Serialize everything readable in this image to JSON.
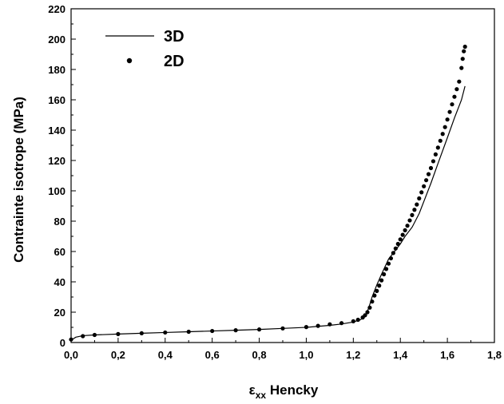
{
  "chart_data": {
    "type": "line",
    "title": "",
    "xlabel_main": "ε",
    "xlabel_sub": "xx",
    "xlabel_rest": " Hencky",
    "ylabel": "Contrainte isotrope (MPa)",
    "xlim": [
      0,
      1.8
    ],
    "ylim": [
      0,
      220
    ],
    "x_ticks": [
      0,
      0.2,
      0.4,
      0.6,
      0.8,
      1.0,
      1.2,
      1.4,
      1.6,
      1.8
    ],
    "x_tick_labels": [
      "0,0",
      "0,2",
      "0,4",
      "0,6",
      "0,8",
      "1,0",
      "1,2",
      "1,4",
      "1,6",
      "1,8"
    ],
    "y_ticks": [
      0,
      20,
      40,
      60,
      80,
      100,
      120,
      140,
      160,
      180,
      200,
      220
    ],
    "y_tick_labels": [
      "0",
      "20",
      "40",
      "60",
      "80",
      "100",
      "120",
      "140",
      "160",
      "180",
      "200",
      "220"
    ],
    "grid": false,
    "legend_position": "top-left",
    "series": [
      {
        "name": "3D",
        "style": "line",
        "color": "#000000",
        "x": [
          0.0,
          0.02,
          0.05,
          0.1,
          0.2,
          0.3,
          0.4,
          0.5,
          0.6,
          0.7,
          0.8,
          0.9,
          1.0,
          1.1,
          1.15,
          1.2,
          1.23,
          1.25,
          1.26,
          1.27,
          1.28,
          1.3,
          1.32,
          1.35,
          1.38,
          1.4,
          1.42,
          1.45,
          1.48,
          1.5,
          1.53,
          1.56,
          1.6,
          1.63,
          1.66,
          1.675
        ],
        "y": [
          1.5,
          3.5,
          4.5,
          5.0,
          5.6,
          6.1,
          6.6,
          7.1,
          7.6,
          8.1,
          8.6,
          9.3,
          10.0,
          11.3,
          12.2,
          13.5,
          15.0,
          17.0,
          20.5,
          25.0,
          30.0,
          38.0,
          45.0,
          55.0,
          61.0,
          65.0,
          70.0,
          76.0,
          85.0,
          93.0,
          105.0,
          118.0,
          135.0,
          148.0,
          160.0,
          169.0
        ]
      },
      {
        "name": "2D",
        "style": "markers",
        "color": "#000000",
        "x": [
          0.0,
          0.05,
          0.1,
          0.2,
          0.3,
          0.4,
          0.5,
          0.6,
          0.7,
          0.8,
          0.9,
          1.0,
          1.05,
          1.1,
          1.15,
          1.2,
          1.22,
          1.24,
          1.25,
          1.26,
          1.27,
          1.28,
          1.29,
          1.3,
          1.31,
          1.32,
          1.33,
          1.34,
          1.35,
          1.36,
          1.37,
          1.38,
          1.39,
          1.4,
          1.41,
          1.42,
          1.43,
          1.44,
          1.45,
          1.46,
          1.47,
          1.48,
          1.49,
          1.5,
          1.51,
          1.52,
          1.53,
          1.54,
          1.55,
          1.56,
          1.57,
          1.58,
          1.59,
          1.6,
          1.61,
          1.62,
          1.63,
          1.64,
          1.65,
          1.66,
          1.665,
          1.67,
          1.675
        ],
        "y": [
          2.0,
          4.2,
          5.0,
          5.6,
          6.1,
          6.6,
          7.1,
          7.6,
          8.1,
          8.6,
          9.3,
          10.2,
          11.0,
          12.0,
          12.8,
          14.0,
          15.0,
          16.5,
          18.0,
          20.0,
          23.0,
          27.0,
          31.0,
          34.0,
          37.5,
          41.0,
          45.0,
          48.5,
          52.0,
          55.5,
          59.0,
          62.0,
          65.0,
          68.0,
          71.0,
          74.0,
          77.0,
          80.5,
          84.0,
          87.5,
          91.0,
          95.0,
          99.0,
          103.0,
          107.0,
          111.0,
          115.0,
          119.5,
          124.0,
          128.5,
          133.0,
          137.5,
          142.0,
          147.0,
          152.0,
          157.0,
          162.0,
          167.0,
          172.0,
          181.0,
          187.0,
          192.0,
          195.0
        ]
      }
    ]
  }
}
